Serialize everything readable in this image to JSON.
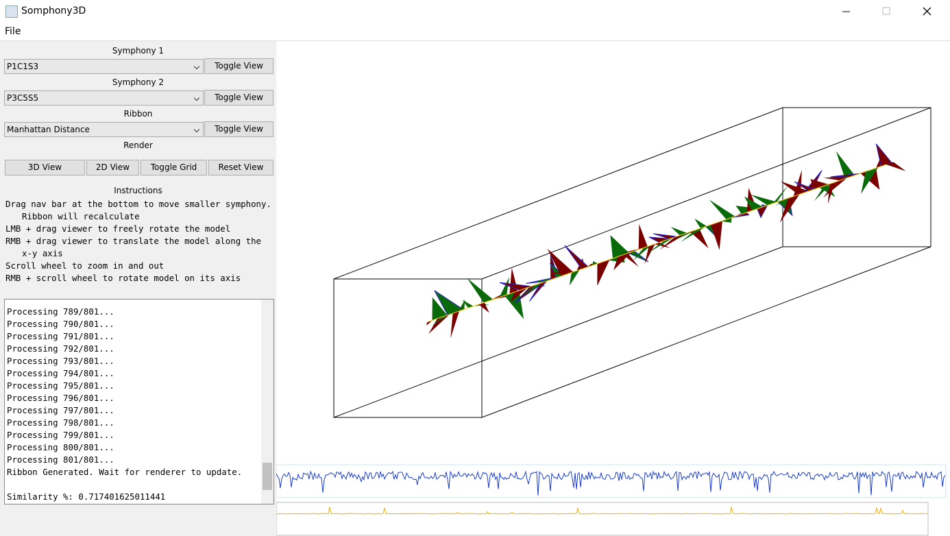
{
  "window": {
    "title": "Somphony3D"
  },
  "menu": [
    "File"
  ],
  "panel": {
    "symphony1": {
      "label": "Symphony 1",
      "selected": "P1C1S3",
      "button": "Toggle View"
    },
    "symphony2": {
      "label": "Symphony 2",
      "selected": "P3C5S5",
      "button": "Toggle View"
    },
    "ribbon": {
      "label": "Ribbon",
      "selected": "Manhattan Distance",
      "button": "Toggle View"
    },
    "render": {
      "label": "Render",
      "buttons": [
        "3D View",
        "2D View",
        "Toggle Grid",
        "Reset View"
      ]
    },
    "instructions": {
      "label": "Instructions",
      "lines": [
        "Drag nav bar at the bottom to move smaller symphony. Ribbon will recalculate",
        "LMB + drag viewer to freely rotate the model",
        "RMB + drag viewer to translate the model along the x-y axis",
        "Scroll wheel to zoom in and out",
        "RMB + scroll wheel to rotate model on its axis"
      ]
    },
    "log": [
      "Processing 789/801...",
      "Processing 790/801...",
      "Processing 791/801...",
      "Processing 792/801...",
      "Processing 793/801...",
      "Processing 794/801...",
      "Processing 795/801...",
      "Processing 796/801...",
      "Processing 797/801...",
      "Processing 798/801...",
      "Processing 799/801...",
      "Processing 800/801...",
      "Processing 801/801...",
      "Ribbon Generated. Wait for renderer to update.",
      "Similarity %: 0.717401625011441"
    ]
  }
}
